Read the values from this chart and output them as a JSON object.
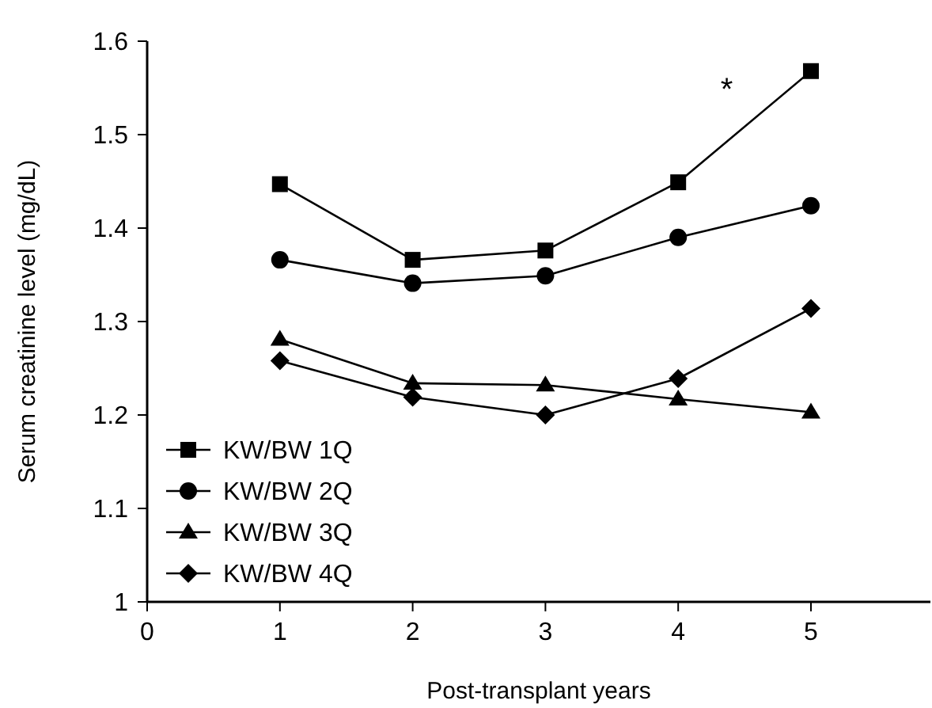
{
  "chart_data": {
    "type": "line",
    "xlabel": "Post-transplant years",
    "ylabel": "Serum creatinine level (mg/dL)",
    "x": [
      1,
      2,
      3,
      4,
      5
    ],
    "xlim": [
      0,
      5.9
    ],
    "xticks": [
      0,
      1,
      2,
      3,
      4,
      5
    ],
    "ylim": [
      1,
      1.6
    ],
    "yticks": [
      1,
      1.1,
      1.2,
      1.3,
      1.4,
      1.5,
      1.6
    ],
    "grid": false,
    "legend": "bottom left",
    "line_style": "solid",
    "series": [
      {
        "name": "KW/BW 1Q",
        "color": "#000000",
        "marker": "square",
        "values": [
          1.447,
          1.366,
          1.376,
          1.449,
          1.568
        ]
      },
      {
        "name": "KW/BW 2Q",
        "color": "#000000",
        "marker": "circle",
        "values": [
          1.366,
          1.341,
          1.349,
          1.39,
          1.424
        ]
      },
      {
        "name": "KW/BW 3Q",
        "color": "#000000",
        "marker": "triangle",
        "values": [
          1.281,
          1.234,
          1.232,
          1.217,
          1.203
        ]
      },
      {
        "name": "KW/BW 4Q",
        "color": "#000000",
        "marker": "diamond",
        "values": [
          1.258,
          1.219,
          1.2,
          1.239,
          1.314
        ]
      }
    ],
    "annotations": [
      "*"
    ]
  }
}
